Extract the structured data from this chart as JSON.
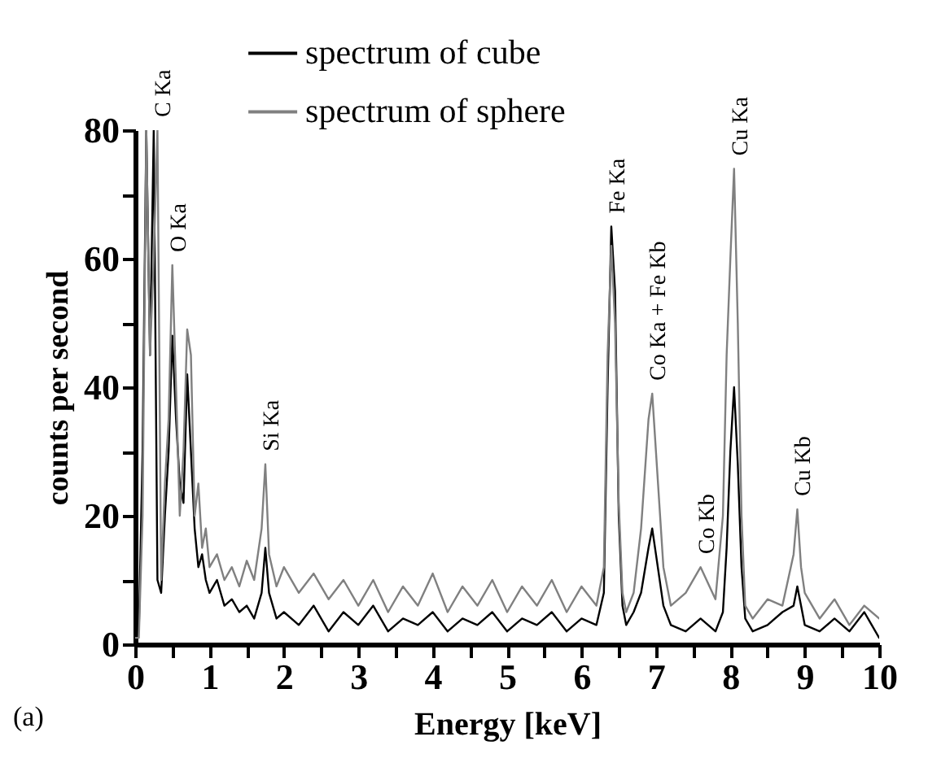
{
  "chart_data": {
    "type": "line",
    "xlabel": "Energy [keV]",
    "ylabel": "counts per second",
    "xlim": [
      0,
      10
    ],
    "xticks": [
      0,
      {
        "value": 0.5,
        "label": null
      },
      1,
      {
        "value": 1.5,
        "label": null
      },
      2,
      {
        "value": 2.5,
        "label": null
      },
      3,
      {
        "value": 3.5,
        "label": null
      },
      4,
      {
        "value": 4.5,
        "label": null
      },
      5,
      {
        "value": 5.5,
        "label": null
      },
      6,
      {
        "value": 6.5,
        "label": null
      },
      7,
      {
        "value": 7.5,
        "label": null
      },
      8,
      {
        "value": 8.5,
        "label": null
      },
      9,
      {
        "value": 9.5,
        "label": null
      },
      10
    ],
    "ylim": [
      0,
      80
    ],
    "yticks": [
      0,
      {
        "value": 10,
        "label": null
      },
      20,
      {
        "value": 30,
        "label": null
      },
      40,
      {
        "value": 50,
        "label": null
      },
      60,
      {
        "value": 70,
        "label": null
      },
      80
    ],
    "grid": false,
    "legend": "top",
    "marker": "none",
    "line_style": "solid",
    "x": [
      0,
      0.05,
      0.1,
      0.15,
      0.2,
      0.25,
      0.3,
      0.35,
      0.4,
      0.45,
      0.5,
      0.55,
      0.6,
      0.65,
      0.7,
      0.75,
      0.8,
      0.85,
      0.9,
      0.95,
      1.0,
      1.1,
      1.2,
      1.3,
      1.4,
      1.5,
      1.6,
      1.7,
      1.75,
      1.8,
      1.9,
      2.0,
      2.2,
      2.4,
      2.6,
      2.8,
      3.0,
      3.2,
      3.4,
      3.6,
      3.8,
      4.0,
      4.2,
      4.4,
      4.6,
      4.8,
      5.0,
      5.2,
      5.4,
      5.6,
      5.8,
      6.0,
      6.2,
      6.3,
      6.35,
      6.4,
      6.45,
      6.5,
      6.55,
      6.6,
      6.7,
      6.8,
      6.9,
      6.95,
      7.0,
      7.1,
      7.2,
      7.4,
      7.6,
      7.8,
      7.9,
      7.95,
      8.0,
      8.05,
      8.1,
      8.15,
      8.2,
      8.3,
      8.5,
      8.7,
      8.85,
      8.9,
      8.95,
      9.0,
      9.2,
      9.4,
      9.6,
      9.8,
      10.0
    ],
    "series": [
      {
        "name": "spectrum of cube",
        "color": "#000000",
        "values": [
          1,
          2,
          30,
          80,
          45,
          80,
          10,
          8,
          20,
          30,
          48,
          35,
          25,
          22,
          42,
          30,
          18,
          12,
          14,
          10,
          8,
          10,
          6,
          7,
          5,
          6,
          4,
          8,
          15,
          8,
          4,
          5,
          3,
          6,
          2,
          5,
          3,
          6,
          2,
          4,
          3,
          5,
          2,
          4,
          3,
          5,
          2,
          4,
          3,
          5,
          2,
          4,
          3,
          8,
          40,
          65,
          55,
          20,
          6,
          3,
          5,
          8,
          15,
          18,
          14,
          6,
          3,
          2,
          4,
          2,
          5,
          15,
          30,
          40,
          28,
          12,
          4,
          2,
          3,
          5,
          6,
          9,
          6,
          3,
          2,
          4,
          2,
          5,
          1
        ]
      },
      {
        "name": "spectrum of sphere",
        "color": "#808080",
        "values": [
          1,
          1,
          20,
          80,
          45,
          60,
          80,
          10,
          25,
          35,
          59,
          40,
          20,
          30,
          49,
          45,
          20,
          25,
          15,
          18,
          12,
          14,
          10,
          12,
          9,
          13,
          10,
          18,
          28,
          14,
          9,
          12,
          8,
          11,
          7,
          10,
          6,
          10,
          5,
          9,
          6,
          11,
          5,
          9,
          6,
          10,
          5,
          9,
          6,
          10,
          5,
          9,
          6,
          12,
          45,
          62,
          50,
          22,
          8,
          5,
          8,
          18,
          35,
          39,
          30,
          12,
          6,
          8,
          12,
          7,
          20,
          45,
          60,
          74,
          50,
          20,
          6,
          4,
          7,
          6,
          14,
          21,
          12,
          8,
          4,
          7,
          3,
          6,
          4
        ]
      }
    ],
    "annotations": [
      {
        "text": "C Ka",
        "x": 0.3,
        "y": 80
      },
      {
        "text": "O Ka",
        "x": 0.5,
        "y": 59
      },
      {
        "text": "Si Ka",
        "x": 1.75,
        "y": 28
      },
      {
        "text": "Fe Ka",
        "x": 6.4,
        "y": 65
      },
      {
        "text": "Co Ka + Fe Kb",
        "x": 6.95,
        "y": 39
      },
      {
        "text": "Co Kb",
        "x": 7.6,
        "y": 12
      },
      {
        "text": "Cu Ka",
        "x": 8.05,
        "y": 74
      },
      {
        "text": "Cu Kb",
        "x": 8.9,
        "y": 21
      },
      "(a)"
    ]
  }
}
